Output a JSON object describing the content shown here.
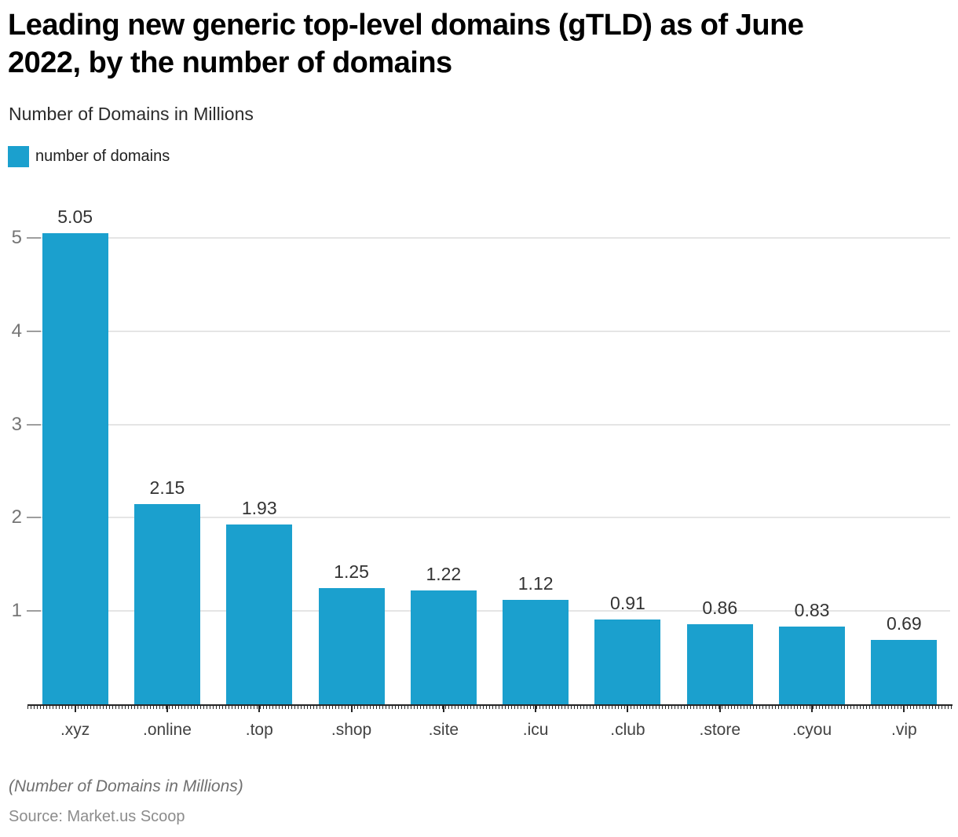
{
  "header": {
    "title": "Leading new generic top-level domains (gTLD) as of June 2022, by the number of domains",
    "subtitle": "Number of Domains in Millions"
  },
  "legend": {
    "label": "number of domains"
  },
  "colors": {
    "bar": "#1BA0CE",
    "grid": "#E5E5E5",
    "axis": "#262626",
    "y_tick_label": "#757575",
    "x_tick_label": "#424242",
    "value_label": "#333333"
  },
  "chart_data": {
    "type": "bar",
    "title": "Leading new generic top-level domains (gTLD) as of June 2022, by the number of domains",
    "subtitle": "Number of Domains in Millions",
    "series_name": "number of domains",
    "categories": [
      ".xyz",
      ".online",
      ".top",
      ".shop",
      ".site",
      ".icu",
      ".club",
      ".store",
      ".cyou",
      ".vip"
    ],
    "values": [
      5.05,
      2.15,
      1.93,
      1.25,
      1.22,
      1.12,
      0.91,
      0.86,
      0.83,
      0.69
    ],
    "value_decimals": 2,
    "xlabel": "",
    "ylabel": "Number of Domains in Millions",
    "ylim": [
      0,
      5.53
    ],
    "yticks": [
      1,
      2,
      3,
      4,
      5
    ],
    "grid": "horizontal",
    "legend_position": "top-left",
    "data_labels": "above-bars"
  },
  "footer": {
    "note": "(Number of Domains in Millions)",
    "source": "Source: Market.us Scoop"
  }
}
